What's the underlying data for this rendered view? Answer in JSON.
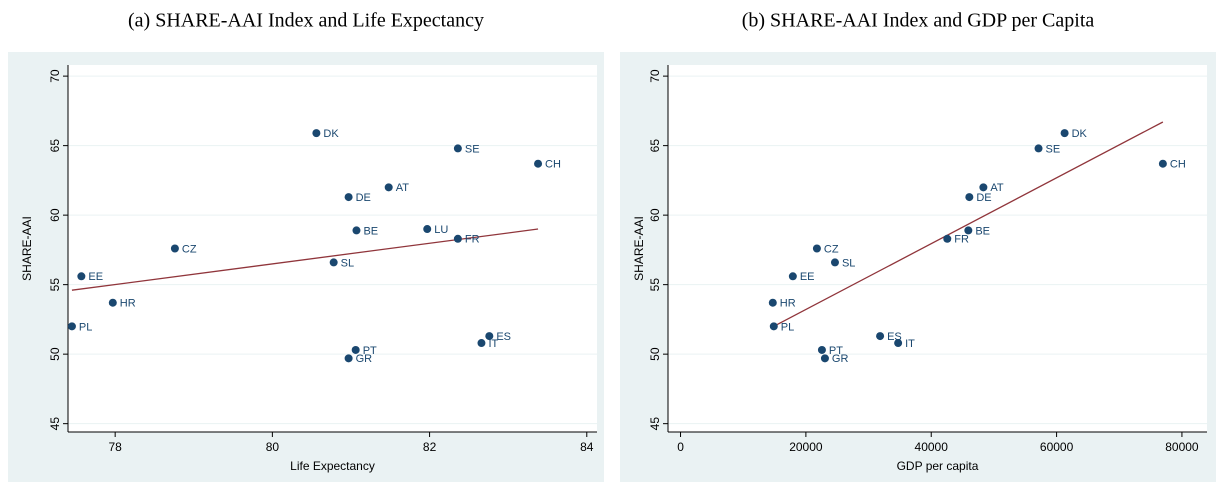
{
  "chart_data": [
    {
      "type": "scatter",
      "title": "(a) SHARE-AAI Index and Life Expectancy",
      "x_label": "Life Expectancy",
      "y_label": "SHARE-AAI",
      "xlim": [
        77.4,
        84.13
      ],
      "ylim": [
        44.4,
        70.8
      ],
      "xticks": [
        78,
        80,
        82,
        84
      ],
      "yticks": [
        45,
        50,
        55,
        60,
        65,
        70
      ],
      "grid": true,
      "labels": [
        "DK",
        "SE",
        "CH",
        "AT",
        "DE",
        "BE",
        "LU",
        "FR",
        "CZ",
        "SL",
        "EE",
        "HR",
        "PL",
        "ES",
        "IT",
        "PT",
        "GR"
      ],
      "x": [
        80.56,
        82.36,
        83.38,
        81.48,
        80.97,
        81.07,
        81.97,
        82.36,
        78.76,
        80.78,
        77.57,
        77.97,
        77.45,
        82.76,
        82.66,
        81.06,
        80.97
      ],
      "values": [
        65.9,
        64.8,
        63.7,
        62.0,
        61.3,
        58.9,
        59.0,
        58.3,
        57.6,
        56.6,
        55.6,
        53.7,
        52.0,
        51.3,
        50.8,
        50.3,
        49.7
      ],
      "color": "#1a476f",
      "fit_line": {
        "x": [
          77.45,
          83.38
        ],
        "values": [
          54.6,
          59.0
        ],
        "color": "#90353b"
      }
    },
    {
      "type": "scatter",
      "title": "(b) SHARE-AAI Index and GDP per Capita",
      "x_label": "GDP per capita",
      "y_label": "SHARE-AAI",
      "xlim": [
        -2000,
        84000
      ],
      "ylim": [
        44.4,
        70.8
      ],
      "xticks": [
        0,
        20000,
        40000,
        60000,
        80000
      ],
      "yticks": [
        45,
        50,
        55,
        60,
        65,
        70
      ],
      "grid": true,
      "labels": [
        "DK",
        "SE",
        "CH",
        "AT",
        "DE",
        "BE",
        "FR",
        "CZ",
        "SL",
        "EE",
        "HR",
        "PL",
        "ES",
        "IT",
        "PT",
        "GR"
      ],
      "x": [
        61280,
        57120,
        76960,
        48320,
        46080,
        45920,
        42560,
        21760,
        24640,
        17920,
        14720,
        14880,
        31840,
        34720,
        22560,
        23040
      ],
      "values": [
        65.9,
        64.8,
        63.7,
        62.0,
        61.3,
        58.9,
        58.3,
        57.6,
        56.6,
        55.6,
        53.7,
        52.0,
        51.3,
        50.8,
        50.3,
        49.7
      ],
      "color": "#1a476f",
      "fit_line": {
        "x": [
          14880,
          76960
        ],
        "values": [
          52.0,
          66.7
        ],
        "color": "#90353b"
      }
    }
  ]
}
